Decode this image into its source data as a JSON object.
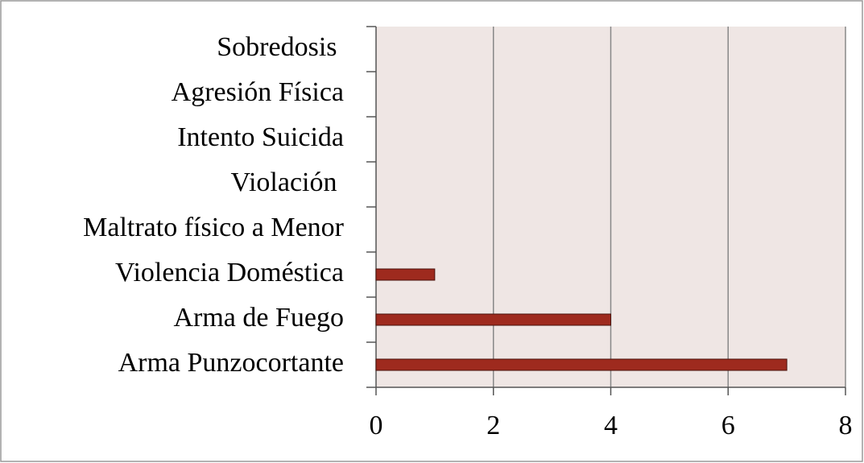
{
  "chart_data": {
    "type": "bar",
    "orientation": "horizontal",
    "categories": [
      "Arma Punzocortante",
      "Arma de Fuego",
      "Violencia Doméstica",
      "Maltrato físico a Menor",
      "Violación ",
      "Intento Suicida",
      "Agresión Física",
      "Sobredosis "
    ],
    "values": [
      7,
      4,
      1,
      0,
      0,
      0,
      0,
      0
    ],
    "color": "#9e2a1e",
    "xlim": [
      0,
      8
    ],
    "xticks": [
      0,
      2,
      4,
      6,
      8
    ],
    "grid": true
  }
}
